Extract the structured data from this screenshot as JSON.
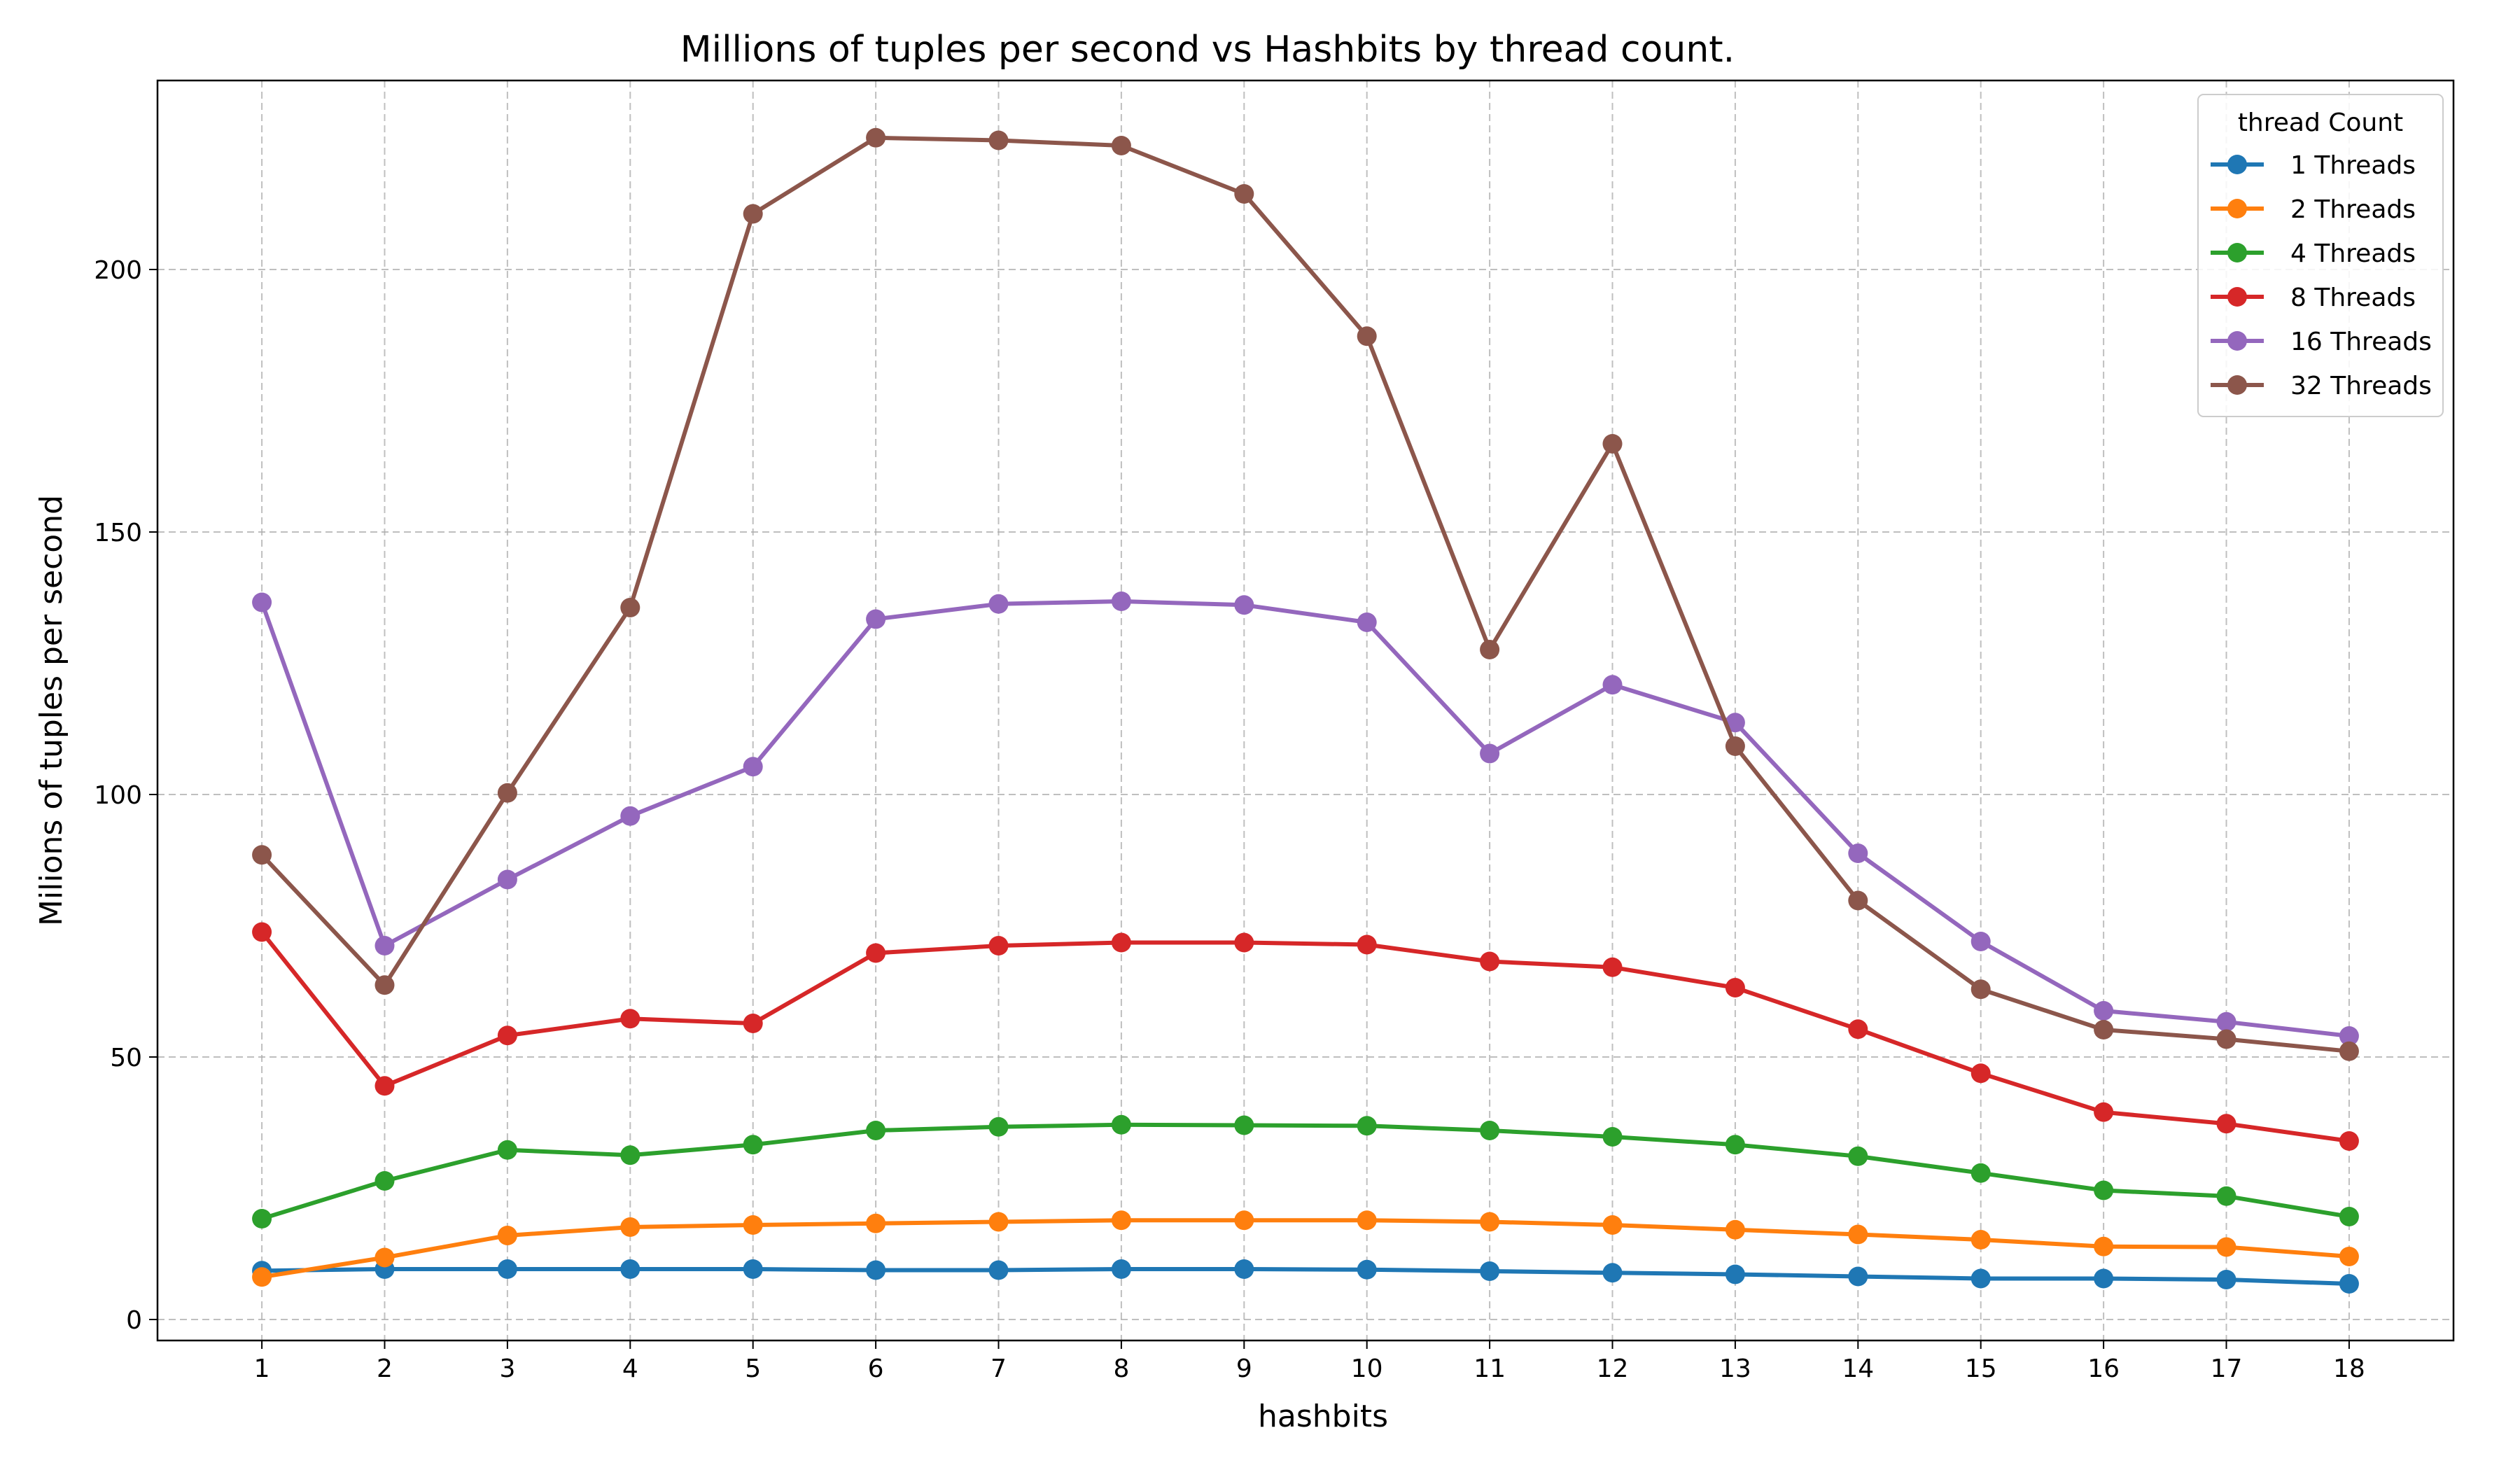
{
  "chart_data": {
    "type": "line",
    "title": "Millions of tuples per second vs Hashbits by thread count.",
    "xlabel": "hashbits",
    "ylabel": "Milions of tuples per second",
    "x": [
      1,
      2,
      3,
      4,
      5,
      6,
      7,
      8,
      9,
      10,
      11,
      12,
      13,
      14,
      15,
      16,
      17,
      18
    ],
    "xlim": [
      0.15,
      18.85
    ],
    "ylim": [
      -4,
      236
    ],
    "yticks": [
      0,
      50,
      100,
      150,
      200
    ],
    "grid": true,
    "legend": {
      "title": "thread Count",
      "placement": "top-right"
    },
    "series": [
      {
        "name": "1 Threads",
        "color": "#1f77b4",
        "values": [
          9.3,
          9.6,
          9.6,
          9.6,
          9.6,
          9.4,
          9.4,
          9.6,
          9.6,
          9.5,
          9.2,
          8.9,
          8.6,
          8.2,
          7.8,
          7.8,
          7.6,
          6.8
        ]
      },
      {
        "name": "2 Threads",
        "color": "#ff7f0e",
        "values": [
          8.1,
          11.8,
          16.0,
          17.6,
          18.0,
          18.3,
          18.6,
          18.9,
          18.9,
          18.9,
          18.6,
          18.0,
          17.1,
          16.2,
          15.2,
          13.9,
          13.8,
          12.0
        ]
      },
      {
        "name": "4 Threads",
        "color": "#2ca02c",
        "values": [
          19.2,
          26.4,
          32.3,
          31.3,
          33.3,
          36.0,
          36.7,
          37.1,
          37.0,
          36.9,
          36.0,
          34.8,
          33.3,
          31.1,
          27.9,
          24.6,
          23.5,
          19.6
        ]
      },
      {
        "name": "8 Threads",
        "color": "#d62728",
        "values": [
          73.8,
          44.5,
          54.1,
          57.3,
          56.4,
          69.8,
          71.2,
          71.8,
          71.8,
          71.4,
          68.2,
          67.1,
          63.2,
          55.3,
          46.9,
          39.5,
          37.3,
          34.0
        ]
      },
      {
        "name": "16 Threads",
        "color": "#9467bd",
        "values": [
          136.6,
          71.2,
          83.8,
          95.9,
          105.3,
          133.4,
          136.3,
          136.8,
          136.1,
          132.8,
          107.8,
          120.9,
          113.7,
          88.8,
          72.0,
          58.8,
          56.7,
          54.0
        ]
      },
      {
        "name": "32 Threads",
        "color": "#8c564b",
        "values": [
          88.5,
          63.7,
          100.3,
          135.6,
          210.6,
          225.1,
          224.6,
          223.6,
          214.4,
          187.3,
          127.6,
          166.8,
          109.2,
          79.8,
          62.9,
          55.2,
          53.4,
          51.1
        ]
      }
    ]
  }
}
